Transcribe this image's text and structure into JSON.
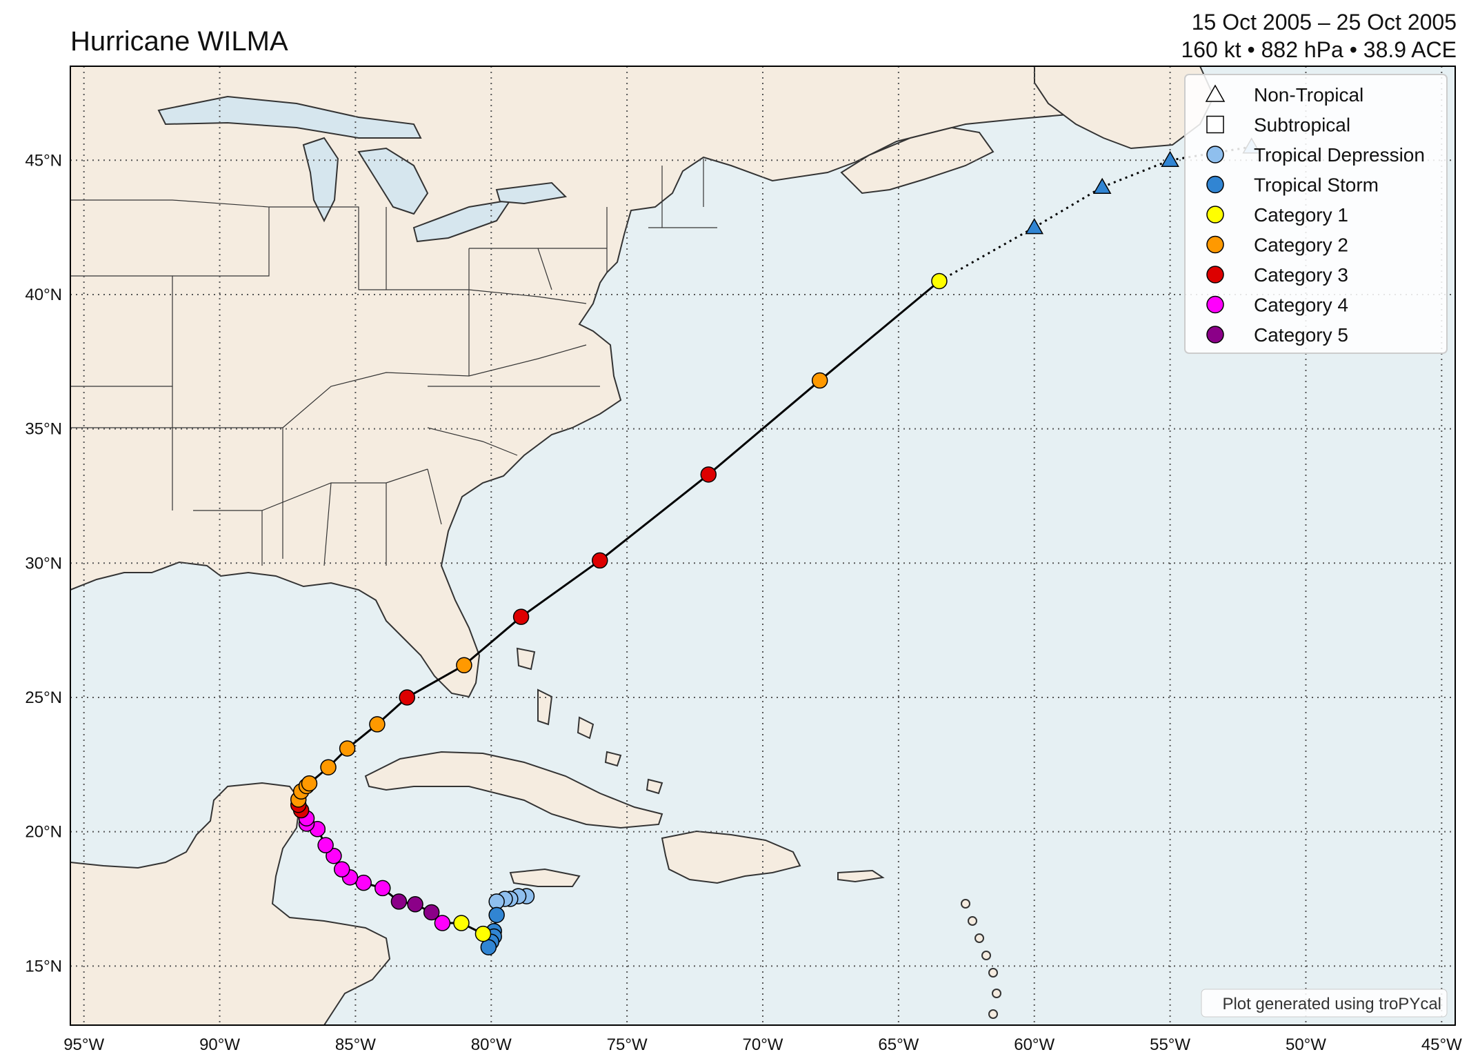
{
  "title": "Hurricane WILMA",
  "subtitle_line1": "15 Oct 2005 – 25 Oct 2005",
  "subtitle_line2": "160 kt • 882 hPa • 38.9 ACE",
  "credit": "Plot generated using troPYcal",
  "colors": {
    "ocean": "#e6f0f3",
    "land": "#f5ece0",
    "lake": "#d6e6ee",
    "coast": "#333333",
    "grid": "#555555"
  },
  "axes": {
    "lon_range": [
      -95.5,
      -44.5
    ],
    "lat_range": [
      12.8,
      48.5
    ],
    "lon_ticks": [
      -95,
      -90,
      -85,
      -80,
      -75,
      -70,
      -65,
      -60,
      -55,
      -50,
      -45
    ],
    "lon_labels": [
      "95°W",
      "90°W",
      "85°W",
      "80°W",
      "75°W",
      "70°W",
      "65°W",
      "60°W",
      "55°W",
      "50°W",
      "45°W"
    ],
    "lat_ticks": [
      15,
      20,
      25,
      30,
      35,
      40,
      45
    ],
    "lat_labels": [
      "15°N",
      "20°N",
      "25°N",
      "30°N",
      "35°N",
      "40°N",
      "45°N"
    ]
  },
  "legend": {
    "position": "top-right",
    "items": [
      {
        "label": "Non-Tropical",
        "marker": "triangle",
        "color": "#ffffff"
      },
      {
        "label": "Subtropical",
        "marker": "square",
        "color": "#ffffff"
      },
      {
        "label": "Tropical Depression",
        "marker": "circle",
        "color": "#8fbfee"
      },
      {
        "label": "Tropical Storm",
        "marker": "circle",
        "color": "#3185d3"
      },
      {
        "label": "Category 1",
        "marker": "circle",
        "color": "#ffff00"
      },
      {
        "label": "Category 2",
        "marker": "circle",
        "color": "#ff9900"
      },
      {
        "label": "Category 3",
        "marker": "circle",
        "color": "#dd0000"
      },
      {
        "label": "Category 4",
        "marker": "circle",
        "color": "#ff00fc"
      },
      {
        "label": "Category 5",
        "marker": "circle",
        "color": "#8b0088"
      }
    ]
  },
  "track": [
    {
      "lon": -78.7,
      "lat": 17.6,
      "cat": "TD",
      "type": "tropical"
    },
    {
      "lon": -79.0,
      "lat": 17.6,
      "cat": "TD",
      "type": "tropical"
    },
    {
      "lon": -79.3,
      "lat": 17.5,
      "cat": "TD",
      "type": "tropical"
    },
    {
      "lon": -79.5,
      "lat": 17.5,
      "cat": "TD",
      "type": "tropical"
    },
    {
      "lon": -79.8,
      "lat": 17.4,
      "cat": "TD",
      "type": "tropical"
    },
    {
      "lon": -79.8,
      "lat": 16.9,
      "cat": "TS",
      "type": "tropical"
    },
    {
      "lon": -79.9,
      "lat": 16.3,
      "cat": "TS",
      "type": "tropical"
    },
    {
      "lon": -79.9,
      "lat": 16.1,
      "cat": "TS",
      "type": "tropical"
    },
    {
      "lon": -80.0,
      "lat": 15.9,
      "cat": "TS",
      "type": "tropical"
    },
    {
      "lon": -80.1,
      "lat": 15.7,
      "cat": "TS",
      "type": "tropical"
    },
    {
      "lon": -80.3,
      "lat": 16.2,
      "cat": "C1",
      "type": "tropical"
    },
    {
      "lon": -81.1,
      "lat": 16.6,
      "cat": "C1",
      "type": "tropical"
    },
    {
      "lon": -81.8,
      "lat": 16.6,
      "cat": "C4",
      "type": "tropical"
    },
    {
      "lon": -82.2,
      "lat": 17.0,
      "cat": "C5",
      "type": "tropical"
    },
    {
      "lon": -82.8,
      "lat": 17.3,
      "cat": "C5",
      "type": "tropical"
    },
    {
      "lon": -83.4,
      "lat": 17.4,
      "cat": "C5",
      "type": "tropical"
    },
    {
      "lon": -84.0,
      "lat": 17.9,
      "cat": "C4",
      "type": "tropical"
    },
    {
      "lon": -84.7,
      "lat": 18.1,
      "cat": "C4",
      "type": "tropical"
    },
    {
      "lon": -85.2,
      "lat": 18.3,
      "cat": "C4",
      "type": "tropical"
    },
    {
      "lon": -85.5,
      "lat": 18.6,
      "cat": "C4",
      "type": "tropical"
    },
    {
      "lon": -85.8,
      "lat": 19.1,
      "cat": "C4",
      "type": "tropical"
    },
    {
      "lon": -86.1,
      "lat": 19.5,
      "cat": "C4",
      "type": "tropical"
    },
    {
      "lon": -86.4,
      "lat": 20.1,
      "cat": "C4",
      "type": "tropical"
    },
    {
      "lon": -86.8,
      "lat": 20.3,
      "cat": "C4",
      "type": "tropical"
    },
    {
      "lon": -86.8,
      "lat": 20.5,
      "cat": "C4",
      "type": "tropical"
    },
    {
      "lon": -87.0,
      "lat": 20.8,
      "cat": "C3",
      "type": "tropical"
    },
    {
      "lon": -87.1,
      "lat": 21.0,
      "cat": "C3",
      "type": "tropical"
    },
    {
      "lon": -87.1,
      "lat": 21.2,
      "cat": "C2",
      "type": "tropical"
    },
    {
      "lon": -87.0,
      "lat": 21.5,
      "cat": "C2",
      "type": "tropical"
    },
    {
      "lon": -86.8,
      "lat": 21.7,
      "cat": "C2",
      "type": "tropical"
    },
    {
      "lon": -86.7,
      "lat": 21.8,
      "cat": "C2",
      "type": "tropical"
    },
    {
      "lon": -86.0,
      "lat": 22.4,
      "cat": "C2",
      "type": "tropical"
    },
    {
      "lon": -85.3,
      "lat": 23.1,
      "cat": "C2",
      "type": "tropical"
    },
    {
      "lon": -84.2,
      "lat": 24.0,
      "cat": "C2",
      "type": "tropical"
    },
    {
      "lon": -83.1,
      "lat": 25.0,
      "cat": "C3",
      "type": "tropical"
    },
    {
      "lon": -81.0,
      "lat": 26.2,
      "cat": "C2",
      "type": "tropical"
    },
    {
      "lon": -78.9,
      "lat": 28.0,
      "cat": "C3",
      "type": "tropical"
    },
    {
      "lon": -76.0,
      "lat": 30.1,
      "cat": "C3",
      "type": "tropical"
    },
    {
      "lon": -72.0,
      "lat": 33.3,
      "cat": "C3",
      "type": "tropical"
    },
    {
      "lon": -67.9,
      "lat": 36.8,
      "cat": "C2",
      "type": "tropical"
    },
    {
      "lon": -63.5,
      "lat": 40.5,
      "cat": "C1",
      "type": "tropical"
    },
    {
      "lon": -60.0,
      "lat": 42.5,
      "cat": "TS",
      "type": "extratropical"
    },
    {
      "lon": -57.5,
      "lat": 44.0,
      "cat": "TS",
      "type": "extratropical"
    },
    {
      "lon": -55.0,
      "lat": 45.0,
      "cat": "TS",
      "type": "extratropical"
    },
    {
      "lon": -52.0,
      "lat": 45.5,
      "cat": "TD",
      "type": "extratropical"
    }
  ]
}
